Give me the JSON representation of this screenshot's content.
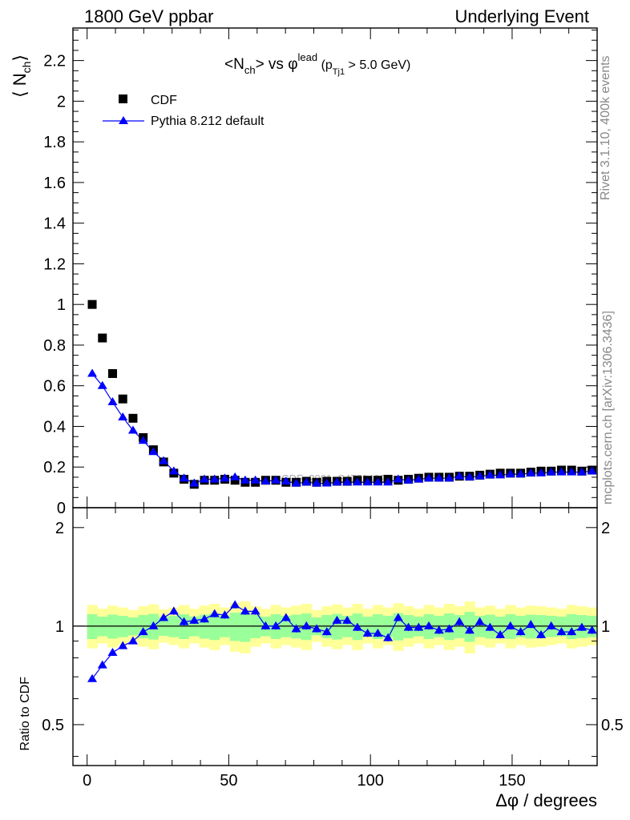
{
  "header": {
    "left": "1800 GeV ppbar",
    "right": "Underlying Event"
  },
  "side_text": {
    "rivet": "Rivet 3.1.10,  400k events",
    "mcplots": "mcplots.cern.ch [arXiv:1306.3436]"
  },
  "watermark": "CDF_2001_S4751469",
  "main_ylabel": "⟨ N",
  "main_ylabel_sub": "ch",
  "main_ylabel_close": "⟩",
  "ratio_ylabel": "Ratio to CDF",
  "xlabel": "Δφ / degrees",
  "title": {
    "part1": "<N",
    "sub1": "ch",
    "part2": "> vs φ",
    "sup": "lead",
    "part3": " (p",
    "sub2": "Tj1",
    "part4": " > 5.0 GeV)"
  },
  "legend": {
    "data_label": "CDF",
    "mc_label": "Pythia 8.212 default",
    "placement": "top-left"
  },
  "colors": {
    "mc": "#0000ff",
    "data": "#000000",
    "band_inner": "#99ff99",
    "band_outer": "#ffff99"
  },
  "chart_data": [
    {
      "type": "scatter",
      "panel": "main",
      "xlim": [
        -5,
        180
      ],
      "ylim": [
        0,
        2.36
      ],
      "x_ticks": [
        0,
        50,
        100,
        150
      ],
      "y_ticks": [
        0,
        0.2,
        0.4,
        0.6,
        0.8,
        1,
        1.2,
        1.4,
        1.6,
        1.8,
        2,
        2.2
      ],
      "y_tick_labels": [
        "0",
        "0.2",
        "0.4",
        "0.6",
        "0.8",
        "1",
        "1.2",
        "1.4",
        "1.6",
        "1.8",
        "2",
        "2.2"
      ],
      "x": [
        1.8,
        5.4,
        9.0,
        12.6,
        16.2,
        19.8,
        23.4,
        27.0,
        30.6,
        34.2,
        37.8,
        41.4,
        45.0,
        48.6,
        52.2,
        55.8,
        59.4,
        63.0,
        66.6,
        70.2,
        73.8,
        77.4,
        81.0,
        84.6,
        88.2,
        91.8,
        95.4,
        99.0,
        102.6,
        106.2,
        109.8,
        113.4,
        117.0,
        120.6,
        124.2,
        127.8,
        131.4,
        135.0,
        138.6,
        142.2,
        145.8,
        149.4,
        153.0,
        156.6,
        160.2,
        163.8,
        167.4,
        171.0,
        174.6,
        178.2
      ],
      "series": [
        {
          "name": "CDF",
          "marker": "square",
          "values": [
            1.0,
            0.835,
            0.66,
            0.535,
            0.44,
            0.345,
            0.285,
            0.225,
            0.17,
            0.14,
            0.115,
            0.135,
            0.135,
            0.14,
            0.135,
            0.125,
            0.125,
            0.135,
            0.135,
            0.125,
            0.125,
            0.13,
            0.125,
            0.13,
            0.13,
            0.13,
            0.135,
            0.135,
            0.135,
            0.14,
            0.135,
            0.14,
            0.145,
            0.15,
            0.15,
            0.15,
            0.155,
            0.155,
            0.16,
            0.165,
            0.17,
            0.17,
            0.17,
            0.175,
            0.18,
            0.18,
            0.185,
            0.185,
            0.18,
            0.185
          ]
        },
        {
          "name": "Pythia 8.212 default",
          "marker": "triangle",
          "values": [
            0.66,
            0.6,
            0.52,
            0.445,
            0.38,
            0.33,
            0.275,
            0.23,
            0.18,
            0.145,
            0.12,
            0.14,
            0.14,
            0.145,
            0.15,
            0.135,
            0.135,
            0.13,
            0.135,
            0.13,
            0.12,
            0.125,
            0.12,
            0.12,
            0.125,
            0.125,
            0.125,
            0.125,
            0.125,
            0.125,
            0.14,
            0.135,
            0.14,
            0.145,
            0.145,
            0.145,
            0.155,
            0.15,
            0.155,
            0.16,
            0.16,
            0.165,
            0.165,
            0.17,
            0.17,
            0.175,
            0.175,
            0.175,
            0.175,
            0.18
          ]
        }
      ]
    },
    {
      "type": "line",
      "panel": "ratio",
      "xlim": [
        -5,
        180
      ],
      "ylim": [
        0.375,
        2.3
      ],
      "log_y": true,
      "y_ticks": [
        0.5,
        1,
        2
      ],
      "y_tick_labels": [
        "0.5",
        "1",
        "2"
      ],
      "x_ticks": [
        0,
        50,
        100,
        150
      ],
      "x_tick_labels": [
        "0",
        "50",
        "100",
        "150"
      ],
      "x": [
        1.8,
        5.4,
        9.0,
        12.6,
        16.2,
        19.8,
        23.4,
        27.0,
        30.6,
        34.2,
        37.8,
        41.4,
        45.0,
        48.6,
        52.2,
        55.8,
        59.4,
        63.0,
        66.6,
        70.2,
        73.8,
        77.4,
        81.0,
        84.6,
        88.2,
        91.8,
        95.4,
        99.0,
        102.6,
        106.2,
        109.8,
        113.4,
        117.0,
        120.6,
        124.2,
        127.8,
        131.4,
        135.0,
        138.6,
        142.2,
        145.8,
        149.4,
        153.0,
        156.6,
        160.2,
        163.8,
        167.4,
        171.0,
        174.6,
        178.2
      ],
      "series": [
        {
          "name": "Pythia 8.212 default",
          "values": [
            0.69,
            0.76,
            0.83,
            0.87,
            0.9,
            0.96,
            1.0,
            1.06,
            1.11,
            1.03,
            1.04,
            1.05,
            1.09,
            1.08,
            1.16,
            1.11,
            1.11,
            1.0,
            1.0,
            1.06,
            0.98,
            1.0,
            0.98,
            0.96,
            1.04,
            1.04,
            0.99,
            0.95,
            0.95,
            0.92,
            1.06,
            0.99,
            0.99,
            1.0,
            0.97,
            0.98,
            1.03,
            0.97,
            1.03,
            0.99,
            0.94,
            1.0,
            0.96,
            1.01,
            0.94,
            1.0,
            0.96,
            0.96,
            0.99,
            0.97
          ]
        }
      ],
      "band_inner": [
        0.925,
        1.075
      ],
      "band_outer": [
        0.875,
        1.14
      ]
    }
  ]
}
